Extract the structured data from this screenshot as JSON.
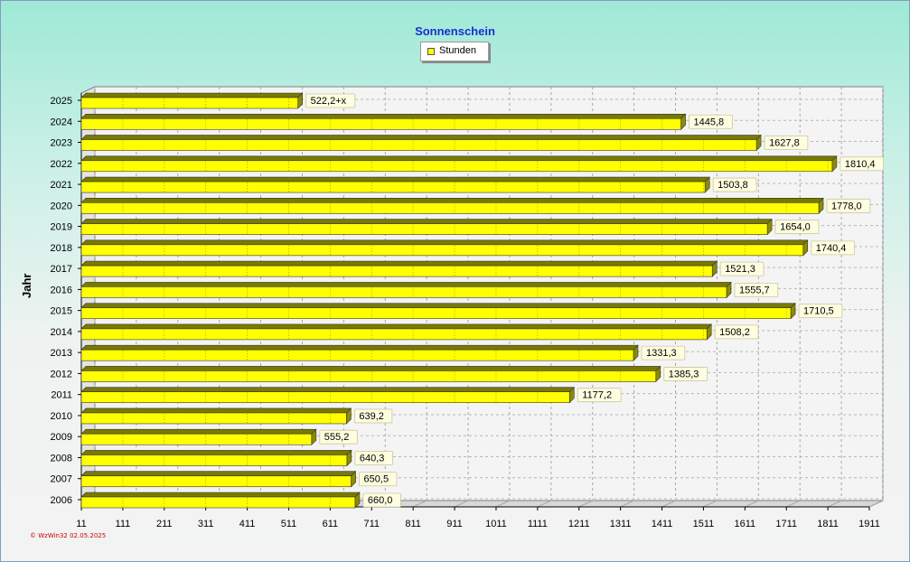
{
  "chart_data": {
    "type": "bar",
    "orientation": "horizontal",
    "title": "Sonnenschein",
    "ylabel": "Jahr",
    "xlabel": "",
    "categories": [
      "2025",
      "2024",
      "2023",
      "2022",
      "2021",
      "2020",
      "2019",
      "2018",
      "2017",
      "2016",
      "2015",
      "2014",
      "2013",
      "2012",
      "2011",
      "2010",
      "2009",
      "2008",
      "2007",
      "2006"
    ],
    "series": [
      {
        "name": "Stunden",
        "color": "#ffff00",
        "values": [
          522.2,
          1445.8,
          1627.8,
          1810.4,
          1503.8,
          1778.0,
          1654.0,
          1740.4,
          1521.3,
          1555.7,
          1710.5,
          1508.2,
          1331.3,
          1385.3,
          1177.2,
          639.2,
          555.2,
          640.3,
          650.5,
          660.0
        ],
        "labels": [
          "522,2+x",
          "1445,8",
          "1627,8",
          "1810,4",
          "1503,8",
          "1778,0",
          "1654,0",
          "1740,4",
          "1521,3",
          "1555,7",
          "1710,5",
          "1508,2",
          "1331,3",
          "1385,3",
          "1177,2",
          "639,2",
          "555,2",
          "640,3",
          "650,5",
          "660,0"
        ]
      }
    ],
    "xticks": [
      "11",
      "111",
      "211",
      "311",
      "411",
      "511",
      "611",
      "711",
      "811",
      "911",
      "1011",
      "1111",
      "1211",
      "1311",
      "1411",
      "1511",
      "1611",
      "1711",
      "1811",
      "1911"
    ],
    "xlim": [
      11,
      1911
    ],
    "grid": true,
    "legend_position": "top-center"
  },
  "footer": {
    "credit": "© WzWin32  02.05.2025"
  }
}
